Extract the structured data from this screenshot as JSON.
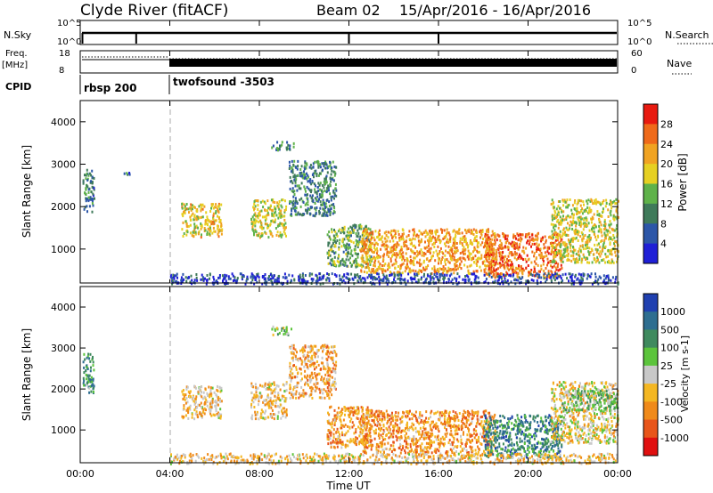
{
  "header": {
    "station": "Clyde River (fitACF)",
    "beam": "Beam 02",
    "date_range": "15/Apr/2016 - 16/Apr/2016"
  },
  "status_panels": {
    "nsky_label": "N.Sky",
    "nsky_ticks": [
      "10^5",
      "10^0"
    ],
    "nsearch_label": "N.Search",
    "nsearch_ticks": [
      "10^5",
      "10^0"
    ],
    "freq_label": "Freq.",
    "freq_unit": "[MHz]",
    "freq_ticks": [
      "18",
      "8"
    ],
    "nave_label": "Nave",
    "nave_ticks": [
      "60",
      "0"
    ],
    "cpid_label": "CPID",
    "cpid_segments": [
      {
        "label": "rbsp 200",
        "start_hour": 0,
        "end_hour": 4
      },
      {
        "label": "twofsound -3503",
        "start_hour": 4,
        "end_hour": 24
      }
    ]
  },
  "axes": {
    "ylabel": "Slant Range [km]",
    "y_ticks": [
      "1000",
      "2000",
      "3000",
      "4000"
    ],
    "xlabel": "Time UT",
    "x_ticks": [
      "00:00",
      "04:00",
      "08:00",
      "12:00",
      "16:00",
      "20:00",
      "00:00"
    ]
  },
  "colorbars": {
    "power": {
      "label": "Power [dB]",
      "ticks": [
        "4",
        "8",
        "12",
        "16",
        "20",
        "24",
        "28"
      ],
      "colors": [
        "#1f1fd6",
        "#2c56a8",
        "#3f7a5a",
        "#5fb24a",
        "#e6d022",
        "#f0a322",
        "#ef6a1a",
        "#e81a10"
      ]
    },
    "velocity": {
      "label": "Velocity [m s-1]",
      "ticks": [
        "1000",
        "500",
        "100",
        "25",
        "-25",
        "-100",
        "-500",
        "-1000"
      ],
      "colors": [
        "#2040b0",
        "#2e6e90",
        "#3f8a5e",
        "#5cc43c",
        "#c8c8c8",
        "#f4b722",
        "#f08a1a",
        "#e8551a",
        "#e01010"
      ]
    }
  },
  "chart_data": [
    {
      "type": "heatmap",
      "name": "power",
      "title": "Clyde River (fitACF) Beam 02 15/Apr/2016 - 16/Apr/2016",
      "xlabel": "Time UT",
      "ylabel": "Slant Range [km]",
      "xlim": [
        0,
        24
      ],
      "ylim": [
        200,
        4500
      ],
      "colorbar": "Power [dB]",
      "clim": [
        0,
        32
      ],
      "blobs": [
        {
          "t": [
            0.1,
            0.6
          ],
          "r": [
            1900,
            2900
          ],
          "level": 0.28
        },
        {
          "t": [
            1.8,
            2.2
          ],
          "r": [
            2750,
            2850
          ],
          "level": 0.25
        },
        {
          "t": [
            4.5,
            6.3
          ],
          "r": [
            1300,
            2100
          ],
          "level": 0.6
        },
        {
          "t": [
            7.6,
            9.2
          ],
          "r": [
            1300,
            2200
          ],
          "level": 0.55
        },
        {
          "t": [
            8.5,
            9.5
          ],
          "r": [
            3350,
            3550
          ],
          "level": 0.3
        },
        {
          "t": [
            9.3,
            11.4
          ],
          "r": [
            1800,
            3100
          ],
          "level": 0.3
        },
        {
          "t": [
            11.0,
            13.0
          ],
          "r": [
            600,
            1600
          ],
          "level": 0.4
        },
        {
          "t": [
            12.5,
            18.5
          ],
          "r": [
            450,
            1500
          ],
          "level": 0.7
        },
        {
          "t": [
            18.0,
            21.5
          ],
          "r": [
            350,
            1400
          ],
          "level": 0.8
        },
        {
          "t": [
            21.0,
            24.0
          ],
          "r": [
            700,
            2200
          ],
          "level": 0.55
        },
        {
          "t": [
            4.0,
            24.0
          ],
          "r": [
            200,
            450
          ],
          "level": 0.15
        }
      ]
    },
    {
      "type": "heatmap",
      "name": "velocity",
      "xlabel": "Time UT",
      "ylabel": "Slant Range [km]",
      "xlim": [
        0,
        24
      ],
      "ylim": [
        200,
        4500
      ],
      "colorbar": "Velocity [m s-1]",
      "clim": [
        -1000,
        1000
      ],
      "blobs": [
        {
          "t": [
            0.1,
            0.6
          ],
          "r": [
            1900,
            2900
          ],
          "level": 0.3
        },
        {
          "t": [
            4.5,
            6.3
          ],
          "r": [
            1300,
            2100
          ],
          "level": 0.6
        },
        {
          "t": [
            7.6,
            9.2
          ],
          "r": [
            1300,
            2200
          ],
          "level": 0.6
        },
        {
          "t": [
            8.5,
            9.5
          ],
          "r": [
            3350,
            3550
          ],
          "level": 0.45
        },
        {
          "t": [
            9.3,
            11.4
          ],
          "r": [
            1800,
            3100
          ],
          "level": 0.65
        },
        {
          "t": [
            11.0,
            13.0
          ],
          "r": [
            600,
            1600
          ],
          "level": 0.7
        },
        {
          "t": [
            12.5,
            18.5
          ],
          "r": [
            450,
            1500
          ],
          "level": 0.7
        },
        {
          "t": [
            18.0,
            21.5
          ],
          "r": [
            350,
            1400
          ],
          "level": 0.25
        },
        {
          "t": [
            21.0,
            24.0
          ],
          "r": [
            700,
            2200
          ],
          "level": 0.55
        },
        {
          "t": [
            21.5,
            24.0
          ],
          "r": [
            1500,
            2000
          ],
          "level": 0.4
        },
        {
          "t": [
            4.0,
            24.0
          ],
          "r": [
            200,
            450
          ],
          "level": 0.6
        }
      ]
    }
  ]
}
